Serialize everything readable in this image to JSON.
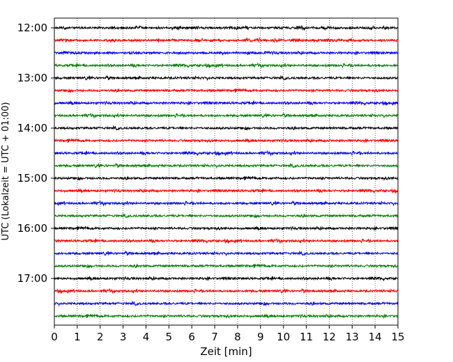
{
  "chart_data": {
    "type": "line",
    "xlabel": "Zeit  [min]",
    "ylabel": "UTC (Lokalzeit = UTC + 01:00)",
    "xlim": [
      0,
      15
    ],
    "x_ticks": [
      "0",
      "1",
      "2",
      "3",
      "4",
      "5",
      "6",
      "7",
      "8",
      "9",
      "10",
      "11",
      "12",
      "13",
      "14",
      "15"
    ],
    "y_tick_labels": [
      "12:00",
      "13:00",
      "14:00",
      "15:00",
      "16:00",
      "17:00"
    ],
    "grid_x": "dotted",
    "trace_start_utc": "12:00",
    "trace_interval_minutes": 15,
    "trace_count": 24,
    "trace_colors": [
      "#000000",
      "#ff0000",
      "#0000ff",
      "#008000"
    ]
  }
}
